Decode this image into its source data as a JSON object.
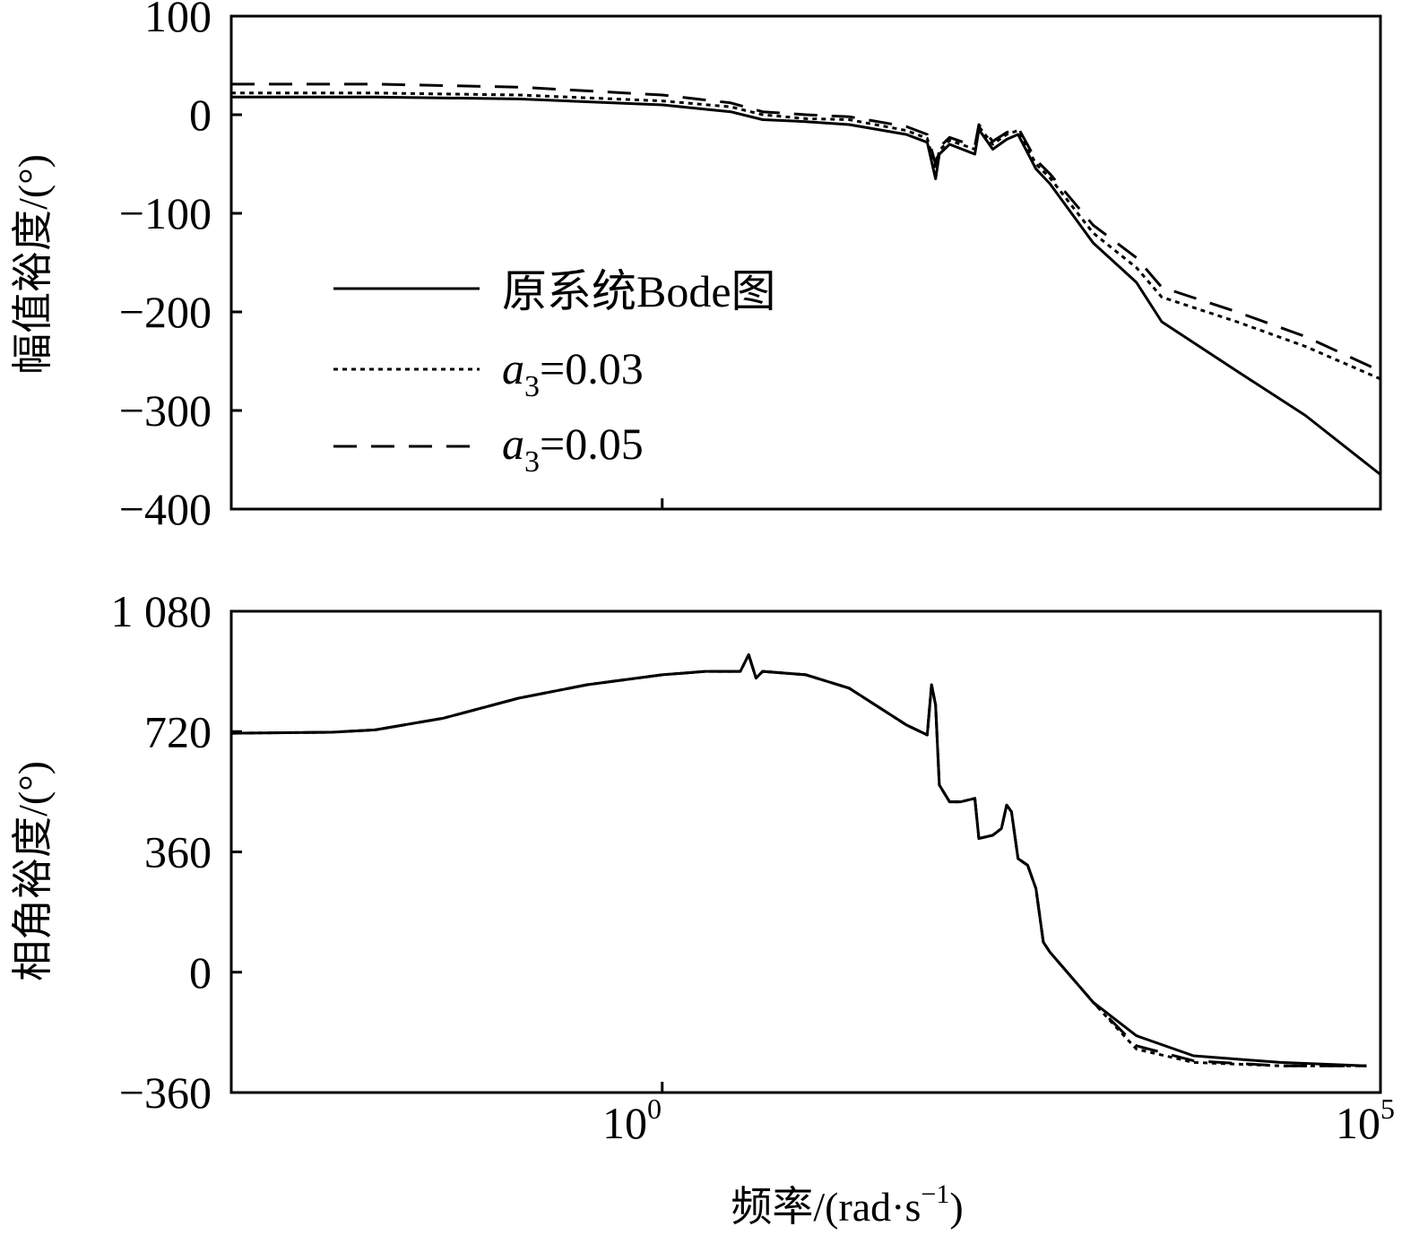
{
  "chart_data": [
    {
      "type": "line",
      "panel": "magnitude",
      "ylabel": "幅值裕度/(°)",
      "xscale": "log",
      "xlim": [
        0.001,
        100000
      ],
      "ylim": [
        -400,
        100
      ],
      "yticks": [
        100,
        0,
        -100,
        -200,
        -300,
        -400
      ],
      "ytick_labels": [
        "100",
        "0",
        "−100",
        "−200",
        "−300",
        "−400"
      ],
      "legend_placement": "center-left",
      "series": [
        {
          "name": "原系统Bode图",
          "style": "solid",
          "x": [
            0.001,
            0.01,
            0.1,
            1,
            3,
            5,
            10,
            20,
            50,
            70,
            80,
            85,
            100,
            150,
            160,
            200,
            250,
            300,
            400,
            500,
            1000,
            2000,
            3000,
            10000,
            30000,
            100000
          ],
          "y": [
            18,
            18,
            16,
            10,
            3,
            -5,
            -7,
            -10,
            -20,
            -28,
            -65,
            -40,
            -30,
            -40,
            -15,
            -35,
            -25,
            -20,
            -55,
            -70,
            -130,
            -170,
            -210,
            -260,
            -305,
            -365
          ]
        },
        {
          "name": "a3=0.03",
          "style": "dotted",
          "x": [
            0.001,
            0.01,
            0.1,
            1,
            3,
            5,
            10,
            20,
            50,
            70,
            80,
            85,
            100,
            150,
            160,
            200,
            250,
            300,
            400,
            500,
            1000,
            2000,
            3000,
            10000,
            30000,
            100000
          ],
          "y": [
            22,
            22,
            20,
            14,
            8,
            0,
            -4,
            -5,
            -16,
            -24,
            -55,
            -36,
            -26,
            -35,
            -12,
            -30,
            -20,
            -16,
            -50,
            -64,
            -120,
            -155,
            -185,
            -210,
            -235,
            -268
          ]
        },
        {
          "name": "a3=0.05",
          "style": "dashed",
          "x": [
            0.001,
            0.01,
            0.1,
            1,
            3,
            5,
            10,
            20,
            50,
            70,
            80,
            85,
            100,
            150,
            160,
            200,
            250,
            300,
            400,
            500,
            1000,
            2000,
            3000,
            10000,
            30000,
            100000
          ],
          "y": [
            31,
            31,
            28,
            20,
            12,
            3,
            0,
            -2,
            -12,
            -20,
            -50,
            -33,
            -23,
            -32,
            -10,
            -27,
            -18,
            -13,
            -46,
            -60,
            -112,
            -145,
            -175,
            -200,
            -225,
            -260
          ]
        }
      ]
    },
    {
      "type": "line",
      "panel": "phase",
      "xlabel": "频率/(rad·s⁻¹)",
      "ylabel": "相角裕度/(°)",
      "xscale": "log",
      "xlim": [
        0.001,
        100000
      ],
      "ylim": [
        -360,
        1080
      ],
      "yticks": [
        1080,
        720,
        360,
        0,
        -360
      ],
      "ytick_labels": [
        "1 080",
        "720",
        "360",
        "0",
        "−360"
      ],
      "xticks": [
        1,
        100000
      ],
      "series": [
        {
          "name": "原系统Bode图",
          "style": "solid",
          "x": [
            0.001,
            0.005,
            0.01,
            0.03,
            0.1,
            0.3,
            1,
            2,
            3,
            3.5,
            4,
            4.5,
            5,
            10,
            20,
            50,
            70,
            75,
            80,
            85,
            100,
            120,
            150,
            160,
            200,
            230,
            250,
            270,
            300,
            350,
            400,
            450,
            500,
            1000,
            2000,
            5000,
            20000,
            80000
          ],
          "y": [
            715,
            718,
            725,
            760,
            820,
            860,
            890,
            900,
            900,
            900,
            950,
            880,
            900,
            890,
            850,
            740,
            710,
            860,
            800,
            560,
            510,
            510,
            520,
            400,
            410,
            430,
            500,
            480,
            340,
            320,
            250,
            90,
            60,
            -90,
            -190,
            -250,
            -270,
            -280
          ]
        },
        {
          "name": "a3=0.03",
          "style": "dotted",
          "x": [
            0.001,
            0.005,
            0.01,
            0.03,
            0.1,
            0.3,
            1,
            2,
            3,
            3.5,
            4,
            4.5,
            5,
            10,
            20,
            50,
            70,
            75,
            80,
            85,
            100,
            120,
            150,
            160,
            200,
            230,
            250,
            270,
            300,
            350,
            400,
            450,
            500,
            1000,
            2000,
            5000,
            20000,
            80000
          ],
          "y": [
            715,
            718,
            725,
            760,
            820,
            860,
            890,
            900,
            900,
            900,
            950,
            880,
            900,
            890,
            850,
            740,
            710,
            860,
            800,
            560,
            510,
            510,
            520,
            400,
            410,
            430,
            500,
            480,
            340,
            320,
            250,
            90,
            60,
            -90,
            -230,
            -270,
            -280,
            -280
          ]
        },
        {
          "name": "a3=0.05",
          "style": "dashed",
          "x": [
            0.001,
            0.005,
            0.01,
            0.03,
            0.1,
            0.3,
            1,
            2,
            3,
            3.5,
            4,
            4.5,
            5,
            10,
            20,
            50,
            70,
            75,
            80,
            85,
            100,
            120,
            150,
            160,
            200,
            230,
            250,
            270,
            300,
            350,
            400,
            450,
            500,
            1000,
            2000,
            5000,
            20000,
            80000
          ],
          "y": [
            715,
            718,
            725,
            760,
            820,
            860,
            890,
            900,
            900,
            900,
            950,
            880,
            900,
            890,
            850,
            740,
            710,
            860,
            800,
            560,
            510,
            510,
            520,
            400,
            410,
            430,
            500,
            480,
            340,
            320,
            250,
            90,
            60,
            -90,
            -220,
            -265,
            -280,
            -280
          ]
        }
      ]
    }
  ],
  "xtick_labels": [
    {
      "base": "10",
      "exp": "0"
    },
    {
      "base": "10",
      "exp": "5"
    }
  ],
  "legend": [
    {
      "label": "原系统Bode图"
    },
    {
      "label_prefix": "a",
      "label_sub": "3",
      "label_suffix": "=0.03"
    },
    {
      "label_prefix": "a",
      "label_sub": "3",
      "label_suffix": "=0.05"
    }
  ],
  "xlabel_parts": {
    "main": "频率/(rad·s",
    "sup": "−1",
    "close": ")"
  }
}
